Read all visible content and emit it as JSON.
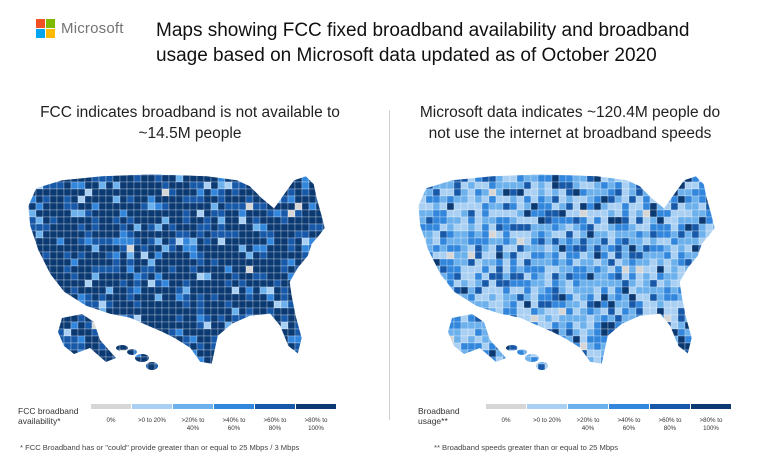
{
  "brand": {
    "name": "Microsoft",
    "logo_colors": [
      "#F25022",
      "#7FBA00",
      "#00A4EF",
      "#FFB900"
    ]
  },
  "title_line1": "Maps showing FCC fixed broadband availability and broadband",
  "title_line2": "usage based on Microsoft data updated as of October 2020",
  "left_panel": {
    "subtitle_line1": "FCC indicates broadband is not available to",
    "subtitle_line2": "~14.5M people",
    "legend_label_line1": "FCC broadband",
    "legend_label_line2": "availability*",
    "footnote": "* FCC Broadband has or \"could\" provide greater than or equal to 25 Mbps / 3 Mbps"
  },
  "right_panel": {
    "subtitle_line1": "Microsoft data indicates ~120.4M people do",
    "subtitle_line2": "not use the internet at broadband speeds",
    "legend_label_line1": "Broadband",
    "legend_label_line2": "usage**",
    "footnote": "** Broadband speeds greater than or equal to 25 Mbps"
  },
  "legend_bins": [
    {
      "line1": "0%",
      "line2": "",
      "color": "#D6D6D6"
    },
    {
      "line1": ">0 to 20%",
      "line2": "",
      "color": "#A9CFF3"
    },
    {
      "line1": ">20% to",
      "line2": "40%",
      "color": "#6CB0EC"
    },
    {
      "line1": ">40% to",
      "line2": "60%",
      "color": "#3286DC"
    },
    {
      "line1": ">60% to",
      "line2": "80%",
      "color": "#1759A8"
    },
    {
      "line1": ">80% to",
      "line2": "100%",
      "color": "#0B3A73"
    }
  ]
}
